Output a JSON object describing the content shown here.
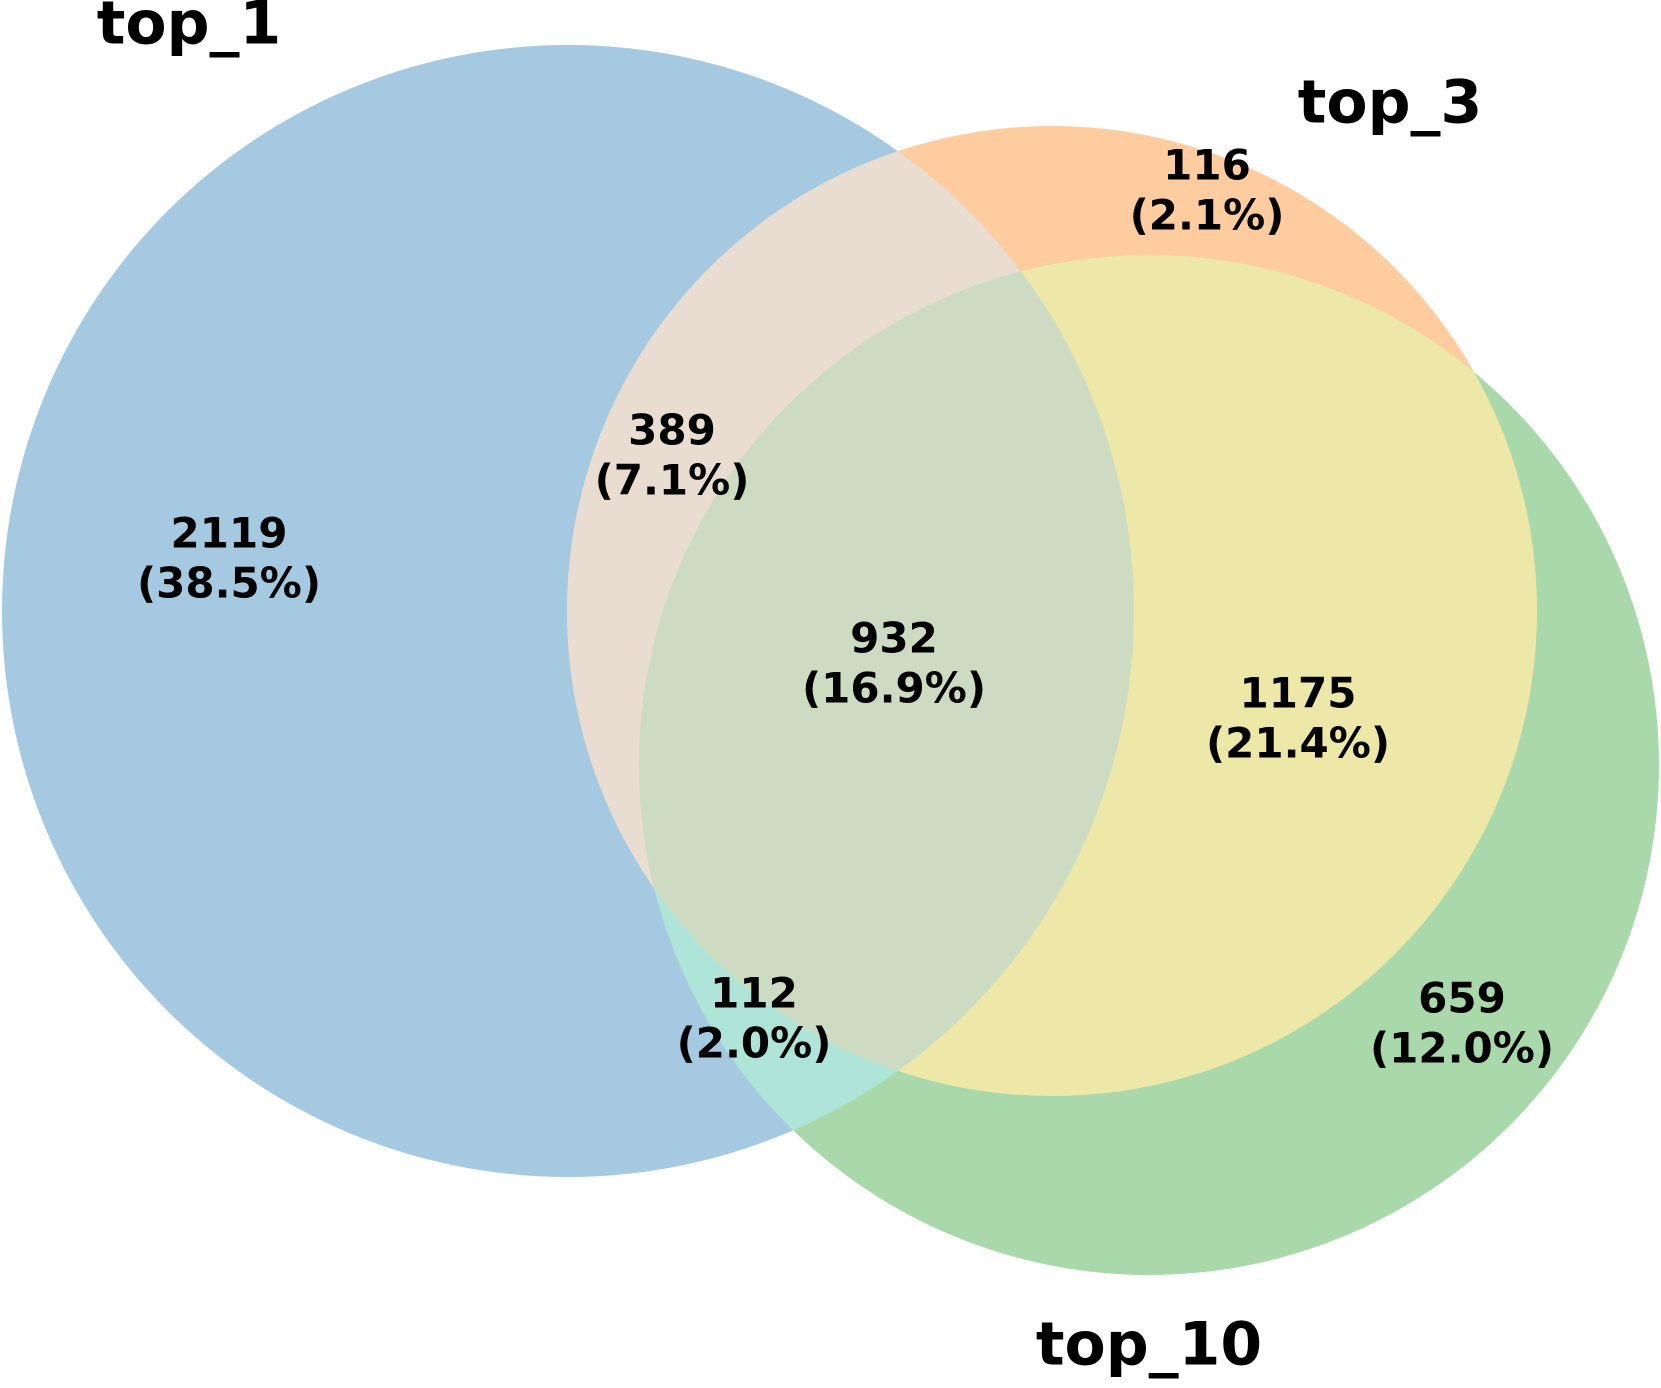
{
  "chart_data": {
    "type": "venn",
    "sets": [
      {
        "name": "top_1",
        "color": "#a5c9e1"
      },
      {
        "name": "top_3",
        "color": "#fecc9e"
      },
      {
        "name": "top_10",
        "color": "#a9d9aa"
      }
    ],
    "regions": [
      {
        "value": 2119,
        "percent": 38.5,
        "percent_label": "(38.5%)"
      },
      {
        "value": 116,
        "percent": 2.1,
        "percent_label": "(2.1%)"
      },
      {
        "value": 389,
        "percent": 7.1,
        "percent_label": "(7.1%)"
      },
      {
        "value": 932,
        "percent": 16.9,
        "percent_label": "(16.9%)"
      },
      {
        "value": 1175,
        "percent": 21.4,
        "percent_label": "(21.4%)"
      },
      {
        "value": 112,
        "percent": 2.0,
        "percent_label": "(2.0%)"
      },
      {
        "value": 659,
        "percent": 12.0,
        "percent_label": "(12.0%)"
      }
    ]
  }
}
